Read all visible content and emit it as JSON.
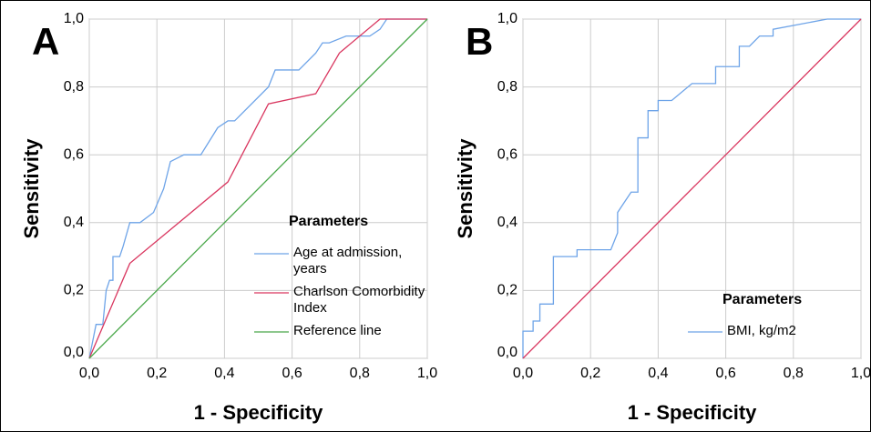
{
  "chart_data": [
    {
      "type": "line",
      "panel_label": "A",
      "x_label": "1 - Specificity",
      "y_label": "Sensitivity",
      "legend_title": "Parameters",
      "legend_loc": "lower right",
      "grid": true,
      "xlim": [
        0,
        1
      ],
      "ylim": [
        0,
        1
      ],
      "xticks": [
        {
          "value": 0,
          "label": "0,0"
        },
        {
          "value": 0.2,
          "label": "0,2"
        },
        {
          "value": 0.4,
          "label": "0,4"
        },
        {
          "value": 0.6,
          "label": "0,6"
        },
        {
          "value": 0.8,
          "label": "0,8"
        },
        {
          "value": 1,
          "label": "1,0"
        }
      ],
      "yticks": [
        {
          "value": 0,
          "label": "0,0"
        },
        {
          "value": 0.2,
          "label": "0,2"
        },
        {
          "value": 0.4,
          "label": "0,4"
        },
        {
          "value": 0.6,
          "label": "0,6"
        },
        {
          "value": 0.8,
          "label": "0,8"
        },
        {
          "value": 1,
          "label": "1,0"
        }
      ],
      "series": [
        {
          "name": "Age at admission, years",
          "color": "#6ea4e8",
          "x": [
            0,
            0.01,
            0.02,
            0.04,
            0.05,
            0.06,
            0.07,
            0.07,
            0.09,
            0.1,
            0.12,
            0.15,
            0.19,
            0.22,
            0.24,
            0.28,
            0.33,
            0.38,
            0.41,
            0.43,
            0.53,
            0.55,
            0.62,
            0.67,
            0.69,
            0.71,
            0.76,
            0.83,
            0.86,
            0.88,
            1
          ],
          "values": [
            0,
            0.05,
            0.1,
            0.1,
            0.2,
            0.23,
            0.23,
            0.3,
            0.3,
            0.33,
            0.4,
            0.4,
            0.43,
            0.5,
            0.58,
            0.6,
            0.6,
            0.68,
            0.7,
            0.7,
            0.8,
            0.85,
            0.85,
            0.9,
            0.93,
            0.93,
            0.95,
            0.95,
            0.97,
            1,
            1
          ]
        },
        {
          "name": "Charlson Comorbidity Index",
          "color": "#d9365f",
          "x": [
            0,
            0.12,
            0.41,
            0.53,
            0.67,
            0.74,
            0.86,
            1
          ],
          "values": [
            0,
            0.28,
            0.52,
            0.75,
            0.78,
            0.9,
            1,
            1
          ]
        },
        {
          "name": "Reference line",
          "color": "#4aa84a",
          "x": [
            0,
            1
          ],
          "values": [
            0,
            1
          ]
        }
      ]
    },
    {
      "type": "line",
      "panel_label": "B",
      "x_label": "1 - Specificity",
      "y_label": "Sensitivity",
      "legend_title": "Parameters",
      "legend_loc": "lower right",
      "grid": true,
      "xlim": [
        0,
        1
      ],
      "ylim": [
        0,
        1
      ],
      "xticks": [
        {
          "value": 0,
          "label": "0,0"
        },
        {
          "value": 0.2,
          "label": "0,2"
        },
        {
          "value": 0.4,
          "label": "0,4"
        },
        {
          "value": 0.6,
          "label": "0,6"
        },
        {
          "value": 0.8,
          "label": "0,8"
        },
        {
          "value": 1,
          "label": "1,0"
        }
      ],
      "yticks": [
        {
          "value": 0,
          "label": "0,0"
        },
        {
          "value": 0.2,
          "label": "0,2"
        },
        {
          "value": 0.4,
          "label": "0,4"
        },
        {
          "value": 0.6,
          "label": "0,6"
        },
        {
          "value": 0.8,
          "label": "0,8"
        },
        {
          "value": 1,
          "label": "1,0"
        }
      ],
      "series": [
        {
          "name": "BMI, kg/m2",
          "color": "#6ea4e8",
          "x": [
            0,
            0,
            0.03,
            0.03,
            0.05,
            0.05,
            0.09,
            0.09,
            0.16,
            0.16,
            0.26,
            0.28,
            0.28,
            0.3,
            0.32,
            0.34,
            0.34,
            0.37,
            0.37,
            0.4,
            0.4,
            0.44,
            0.5,
            0.57,
            0.57,
            0.64,
            0.64,
            0.67,
            0.7,
            0.74,
            0.74,
            0.9,
            1
          ],
          "values": [
            0,
            0.08,
            0.08,
            0.11,
            0.11,
            0.16,
            0.16,
            0.3,
            0.3,
            0.32,
            0.32,
            0.37,
            0.43,
            0.46,
            0.49,
            0.49,
            0.65,
            0.65,
            0.73,
            0.73,
            0.76,
            0.76,
            0.81,
            0.81,
            0.86,
            0.86,
            0.92,
            0.92,
            0.95,
            0.95,
            0.97,
            1,
            1
          ]
        },
        {
          "color": "#d9365f",
          "x": [
            0,
            1
          ],
          "values": [
            0,
            1
          ]
        }
      ]
    }
  ]
}
